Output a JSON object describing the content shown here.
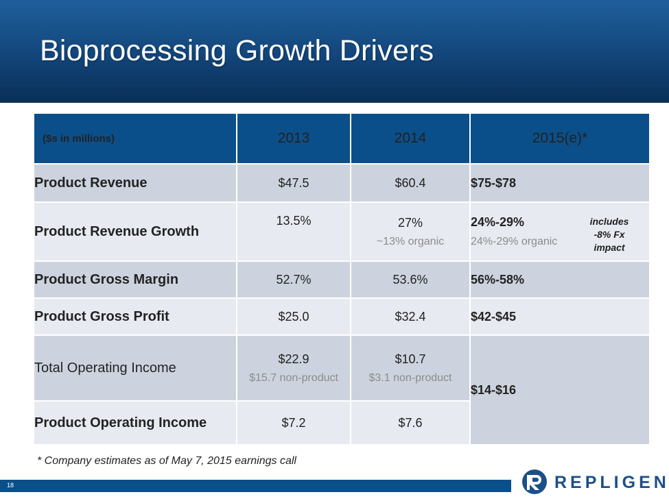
{
  "header": {
    "title": "Bioprocessing Growth Drivers"
  },
  "table": {
    "columns": [
      "($s in millions)",
      "2013",
      "2014",
      "2015(e)*"
    ],
    "rows": [
      {
        "label": "Product Revenue",
        "v2013": "$47.5",
        "v2014": "$60.4",
        "v2015": "$75-$78"
      },
      {
        "label": "Product Revenue Growth",
        "v2013": "13.5%",
        "v2014": "27%",
        "v2014_sub": "~13% organic",
        "v2015": "24%-29%",
        "v2015_sub": "24%-29% organic",
        "note": "includes -8% Fx impact"
      },
      {
        "label": "Product Gross Margin",
        "v2013": "52.7%",
        "v2014": "53.6%",
        "v2015": "56%-58%"
      },
      {
        "label": "Product Gross Profit",
        "v2013": "$25.0",
        "v2014": "$32.4",
        "v2015": "$42-$45"
      },
      {
        "label": "Total Operating Income",
        "v2013": "$22.9",
        "v2013_sub": "$15.7 non-product",
        "v2014": "$10.7",
        "v2014_sub": "$3.1 non-product",
        "v2015": "$14-$16"
      },
      {
        "label": "Product Operating Income",
        "v2013": "$7.2",
        "v2014": "$7.6"
      }
    ]
  },
  "footnote": "* Company estimates as of May 7, 2015 earnings call",
  "footer": {
    "page_number": "18",
    "brand": "REPLIGEN",
    "logo_icon": "repligen-r-logo-icon"
  },
  "colors": {
    "header_blue": "#0b4f8a",
    "row_dark": "#cdd3de",
    "row_light": "#e7eaf0",
    "brand_blue": "#1b4f88"
  }
}
